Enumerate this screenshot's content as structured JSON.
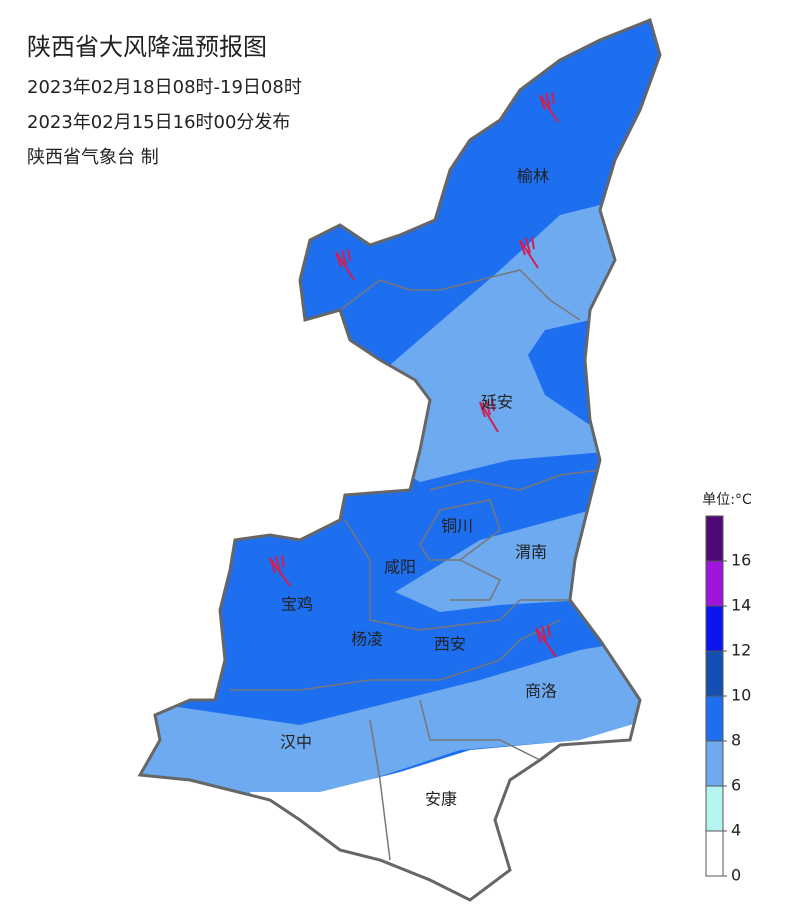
{
  "header": {
    "title": "陕西省大风降温预报图",
    "period": "2023年02月18日08时-19日08时",
    "issued": "2023年02月15日16时00分发布",
    "agency": "陕西省气象台 制"
  },
  "cities": [
    "榆林",
    "延安",
    "铜川",
    "渭南",
    "咸阳",
    "宝鸡",
    "杨凌",
    "西安",
    "商洛",
    "汉中",
    "安康"
  ],
  "legend": {
    "unit": "单位:°C",
    "ticks": [
      0,
      4,
      6,
      8,
      10,
      12,
      14,
      16
    ],
    "colors": [
      "#ffffff",
      "#b4f5f0",
      "#6eaaf0",
      "#1e6ef0",
      "#1450b4",
      "#0a14f0",
      "#a014dc",
      "#500a78"
    ]
  }
}
